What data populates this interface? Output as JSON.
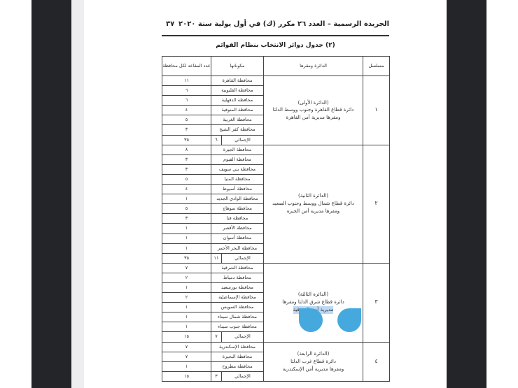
{
  "header": {
    "title": "الجريدة الرسمية – العدد ٢٦ مكرر (ك) في أول يولية سنة ٢٠٢٠",
    "page_number": "٣٧"
  },
  "table_title": "(٢) جدول دوائر الانتخاب بنظام القوائم",
  "columns": {
    "serial": "مسلسل",
    "district": "الدائرة ومقرها",
    "components": "مكوناتها",
    "seats": "عدد المقاعد لكل محافظة"
  },
  "total_label": "الإجمالي",
  "groups": [
    {
      "serial": "١",
      "lines": [
        "(الدائرة الأولى)",
        "دائرة قطاع القاهرة وجنوب ووسط الدلتا",
        "ومقرها مديرية أمن القاهرة"
      ],
      "rows": [
        [
          "محافظة القاهرة",
          "١١"
        ],
        [
          "محافظة القليوبية",
          "٦"
        ],
        [
          "محافظة الدقهلية",
          "٦"
        ],
        [
          "محافظة المنوفية",
          "٤"
        ],
        [
          "محافظة الغربية",
          "٥"
        ],
        [
          "محافظة كفر الشيخ",
          "٣"
        ]
      ],
      "total_count": "٦",
      "total_seats": "٣٥"
    },
    {
      "serial": "٢",
      "lines": [
        "(الدائرة الثانية)",
        "دائرة قطاع شمال ووسط وجنوب الصعيد",
        "ومقرها مديرية أمن الجيزة"
      ],
      "rows": [
        [
          "محافظة الجيزة",
          "٨"
        ],
        [
          "محافظة الفيوم",
          "٣"
        ],
        [
          "محافظة بني سويف",
          "٣"
        ],
        [
          "محافظة المنيا",
          "٥"
        ],
        [
          "محافظة أسيوط",
          "٤"
        ],
        [
          "محافظة الوادي الجديد",
          "١"
        ],
        [
          "محافظة سوهاج",
          "٥"
        ],
        [
          "محافظة قنا",
          "٣"
        ],
        [
          "محافظة الأقصر",
          "١"
        ],
        [
          "محافظة أسوان",
          "١"
        ],
        [
          "محافظة البحر الأحمر",
          "١"
        ]
      ],
      "total_count": "١١",
      "total_seats": "٣٥"
    },
    {
      "serial": "٣",
      "lines": [
        "(الدائرة الثالثة)",
        "دائرة قطاع شرق الدلتا ومقرها",
        "مديرية أمن الشرقية"
      ],
      "rows": [
        [
          "محافظة الشرقية",
          "٧"
        ],
        [
          "محافظة دمياط",
          "٢"
        ],
        [
          "محافظة بورسعيد",
          "١"
        ],
        [
          "محافظة الإسماعيلية",
          "٢"
        ],
        [
          "محافظة السويس",
          "١"
        ],
        [
          "محافظة شمال سيناء",
          "١"
        ],
        [
          "محافظة جنوب سيناء",
          "١"
        ]
      ],
      "total_count": "٧",
      "total_seats": "١٥"
    },
    {
      "serial": "٤",
      "lines": [
        "(الدائرة الرابعة)",
        "دائرة قطاع غرب الدلتا",
        "ومقرها مديرية أمن الإسكندرية"
      ],
      "rows": [
        [
          "محافظة الإسكندرية",
          "٧"
        ],
        [
          "محافظة البحيرة",
          "٧"
        ],
        [
          "محافظة مطروح",
          "١"
        ]
      ],
      "total_count": "٣",
      "total_seats": "١٥"
    }
  ],
  "colors": {
    "selection_handle": "#45a9de",
    "selection_highlight": "#bcd8f5",
    "frame_dark": "#242529"
  }
}
